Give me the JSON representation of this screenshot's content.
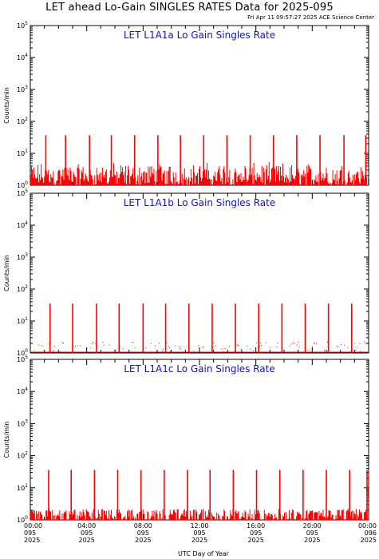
{
  "header": {
    "title": "LET ahead Lo-Gain SINGLES RATES Data for 2025-095",
    "timestamp": "Fri Apr 11 09:57:27 2025 ACE Science Center"
  },
  "colors": {
    "data": "#ff0000",
    "panel_title": "#1010e0",
    "axes": "#000000"
  },
  "chart_data": {
    "type": "line",
    "x_axis_title": "UTC Day of Year",
    "y_axis_title": "Counts/min",
    "y_scale": "log",
    "ylim": [
      1,
      100000
    ],
    "y_ticks": [
      {
        "value": 1,
        "base": "10",
        "exp": "0"
      },
      {
        "value": 10,
        "base": "10",
        "exp": "1"
      },
      {
        "value": 100,
        "base": "10",
        "exp": "2"
      },
      {
        "value": 1000,
        "base": "10",
        "exp": "3"
      },
      {
        "value": 10000,
        "base": "10",
        "exp": "4"
      },
      {
        "value": 100000,
        "base": "10",
        "exp": "5"
      }
    ],
    "xlim_hours": [
      0,
      24
    ],
    "x_ticks": [
      {
        "hour": 0,
        "time": "00:00",
        "doy": "095",
        "year": "2025"
      },
      {
        "hour": 4,
        "time": "04:00",
        "doy": "095",
        "year": "2025"
      },
      {
        "hour": 8,
        "time": "08:00",
        "doy": "095",
        "year": "2025"
      },
      {
        "hour": 12,
        "time": "12:00",
        "doy": "095",
        "year": "2025"
      },
      {
        "hour": 16,
        "time": "16:00",
        "doy": "095",
        "year": "2025"
      },
      {
        "hour": 20,
        "time": "20:00",
        "doy": "095",
        "year": "2025"
      },
      {
        "hour": 24,
        "time": "00:00",
        "doy": "096",
        "year": "2025"
      }
    ],
    "panels": [
      {
        "title": "LET L1A1a Lo Gain Singles Rate",
        "spike_hours": [
          1.1,
          2.5,
          4.2,
          5.75,
          7.4,
          9.05,
          10.65,
          12.3,
          13.95,
          15.6,
          17.25,
          18.9,
          20.55,
          22.25,
          23.8
        ],
        "spike_peak": 37,
        "baseline": "1-5 counts/min, continuous"
      },
      {
        "title": "LET L1A1b Lo Gain Singles Rate",
        "spike_hours": [
          1.4,
          3.0,
          4.7,
          6.3,
          8.0,
          9.6,
          11.25,
          12.9,
          14.55,
          16.2,
          17.85,
          19.5,
          21.15,
          22.8
        ],
        "spike_peak": 35,
        "baseline": "mostly 1 count/min, sparse"
      },
      {
        "title": "LET L1A1c Lo Gain Singles Rate",
        "spike_hours": [
          1.3,
          2.9,
          4.55,
          6.2,
          7.85,
          9.5,
          11.15,
          12.75,
          14.4,
          16.05,
          17.7,
          19.35,
          21.0,
          22.65,
          24.0
        ],
        "spike_peak": 36,
        "baseline": "1-2 counts/min, continuous"
      }
    ]
  }
}
